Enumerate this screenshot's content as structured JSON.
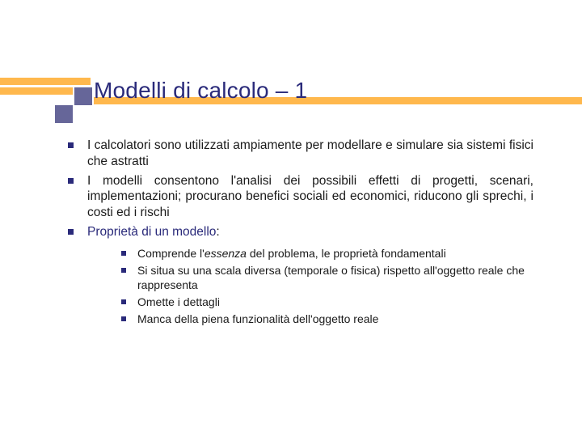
{
  "slide": {
    "title_prefix": "Modelli di calcolo ",
    "title_dash": "–",
    "title_suffix": " 1"
  },
  "bullets": [
    {
      "text": "I calcolatori sono utilizzati ampiamente per modellare e simulare sia sistemi fisici che astratti"
    },
    {
      "text": "I modelli consentono l'analisi dei possibili effetti di progetti, scenari, implementazioni; procurano benefici sociali ed economici, riducono gli sprechi, i costi ed i rischi"
    },
    {
      "emphasis": "Proprietà di un modello",
      "suffix": ":"
    }
  ],
  "sub": {
    "item0_pre": "Comprende l'",
    "item0_em": "essenza",
    "item0_post": " del problema, le proprietà fondamentali",
    "item1": "Si situa su una scala diversa (temporale o fisica) rispetto all'oggetto reale che rappresenta",
    "item2": "Omette i dettagli",
    "item3": "Manca della piena funzionalità dell'oggetto reale"
  },
  "style": {
    "accent_color": "#2a2a7a",
    "bullet_color": "#2a2a7a",
    "bar_color": "#ffb84d",
    "square_color": "#666699",
    "background": "#ffffff",
    "title_fontsize": 28,
    "body_fontsize": 15.5,
    "sub_fontsize": 14
  }
}
